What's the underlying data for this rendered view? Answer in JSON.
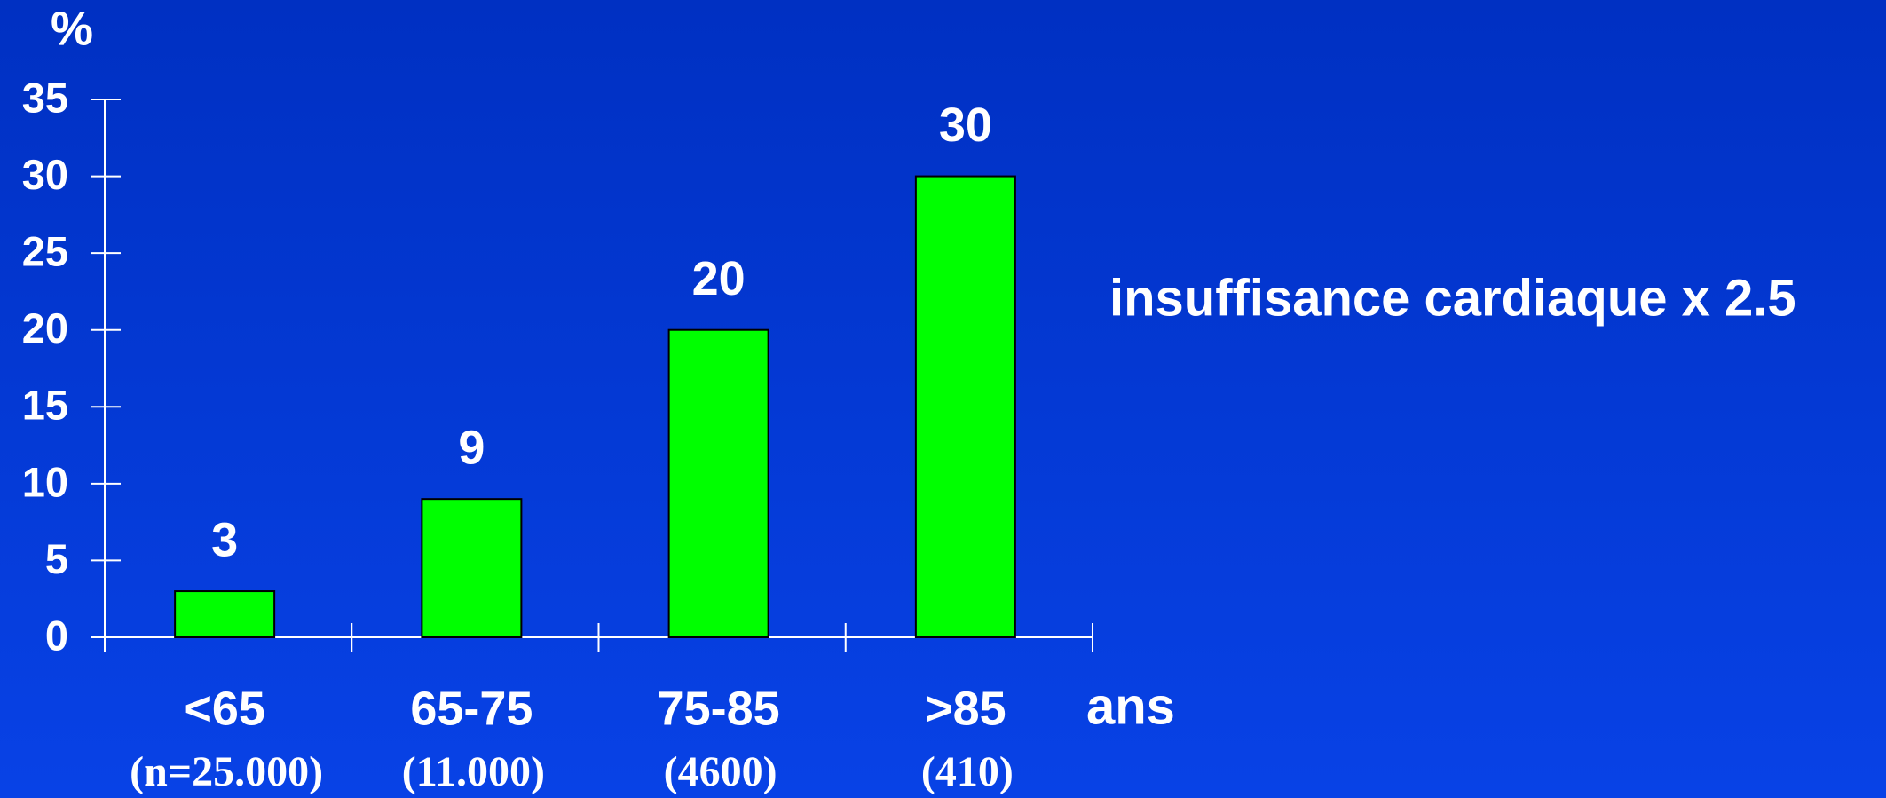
{
  "chart_data": {
    "type": "bar",
    "y_label": "%",
    "x_label": "ans",
    "annotation": "insuffisance cardiaque x 2.5",
    "categories": [
      "<65",
      "65-75",
      "75-85",
      ">85"
    ],
    "sublabels": [
      "(n=25.000)",
      "(11.000)",
      "(4600)",
      "(410)"
    ],
    "values": [
      3,
      9,
      20,
      30
    ],
    "color": "#00ff00",
    "ylim": [
      0,
      35
    ],
    "yticks": [
      0,
      5,
      10,
      15,
      20,
      25,
      30,
      35
    ]
  }
}
